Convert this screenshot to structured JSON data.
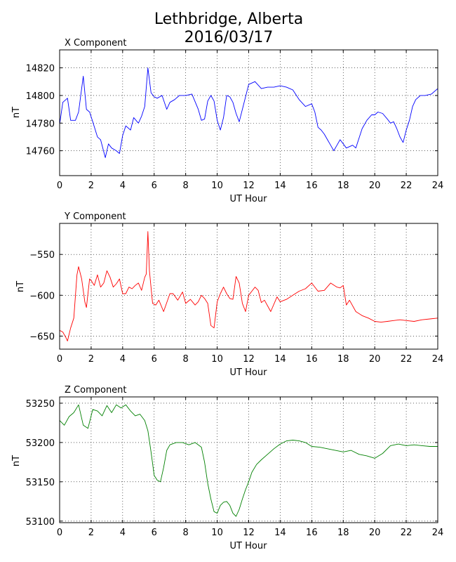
{
  "title_line1": "Lethbridge, Alberta",
  "title_line2": "2016/03/17",
  "chart_data": [
    {
      "type": "line",
      "panel_title": "X Component",
      "xlabel": "UT Hour",
      "ylabel": "nT",
      "xlim": [
        0,
        24
      ],
      "ylim": [
        14742,
        14833
      ],
      "xticks": [
        0,
        2,
        4,
        6,
        8,
        10,
        12,
        14,
        16,
        18,
        20,
        22,
        24
      ],
      "yticks": [
        14760,
        14780,
        14800,
        14820
      ],
      "grid": true,
      "series": [
        {
          "color": "#0000ff",
          "x": [
            0,
            0.2,
            0.5,
            0.7,
            1.0,
            1.2,
            1.5,
            1.7,
            1.9,
            2.1,
            2.4,
            2.6,
            2.9,
            3.1,
            3.3,
            3.6,
            3.8,
            4.0,
            4.2,
            4.5,
            4.7,
            5.0,
            5.2,
            5.4,
            5.6,
            5.8,
            6.0,
            6.2,
            6.5,
            6.8,
            7.0,
            7.3,
            7.6,
            8.0,
            8.4,
            8.8,
            9.0,
            9.2,
            9.4,
            9.6,
            9.8,
            10.0,
            10.2,
            10.4,
            10.6,
            10.8,
            11.0,
            11.2,
            11.4,
            11.6,
            12.0,
            12.4,
            12.8,
            13.2,
            13.6,
            14.0,
            14.4,
            14.8,
            15.2,
            15.6,
            16.0,
            16.2,
            16.4,
            16.6,
            16.8,
            17.0,
            17.2,
            17.4,
            17.6,
            17.8,
            18.0,
            18.2,
            18.4,
            18.6,
            18.8,
            19.0,
            19.2,
            19.5,
            19.8,
            20.0,
            20.2,
            20.5,
            20.8,
            21.0,
            21.2,
            21.4,
            21.6,
            21.8,
            22.0,
            22.2,
            22.4,
            22.6,
            22.9,
            23.2,
            23.6,
            24.0
          ],
          "y": [
            14779,
            14795,
            14798,
            14782,
            14782,
            14788,
            14814,
            14790,
            14788,
            14781,
            14770,
            14768,
            14755,
            14765,
            14762,
            14760,
            14758,
            14771,
            14778,
            14775,
            14784,
            14780,
            14785,
            14792,
            14820,
            14802,
            14799,
            14798,
            14800,
            14790,
            14795,
            14797,
            14800,
            14800,
            14801,
            14790,
            14782,
            14783,
            14796,
            14800,
            14796,
            14782,
            14775,
            14784,
            14800,
            14799,
            14795,
            14787,
            14781,
            14790,
            14808,
            14810,
            14805,
            14806,
            14806,
            14807,
            14806,
            14804,
            14797,
            14792,
            14794,
            14788,
            14777,
            14775,
            14772,
            14768,
            14764,
            14760,
            14764,
            14768,
            14765,
            14762,
            14763,
            14764,
            14762,
            14769,
            14776,
            14782,
            14786,
            14786,
            14788,
            14787,
            14783,
            14780,
            14781,
            14776,
            14770,
            14766,
            14775,
            14782,
            14792,
            14797,
            14800,
            14800,
            14801,
            14805
          ]
        }
      ]
    },
    {
      "type": "line",
      "panel_title": "Y Component",
      "xlabel": "UT Hour",
      "ylabel": "nT",
      "xlim": [
        0,
        24
      ],
      "ylim": [
        -666,
        -512
      ],
      "xticks": [
        0,
        2,
        4,
        6,
        8,
        10,
        12,
        14,
        16,
        18,
        20,
        22,
        24
      ],
      "yticks": [
        -550,
        -600,
        -650
      ],
      "grid": true,
      "series": [
        {
          "color": "#ff0000",
          "x": [
            0,
            0.2,
            0.4,
            0.5,
            0.7,
            0.9,
            1.1,
            1.2,
            1.4,
            1.6,
            1.7,
            1.9,
            2.0,
            2.2,
            2.4,
            2.6,
            2.8,
            3.0,
            3.2,
            3.4,
            3.6,
            3.8,
            4.0,
            4.2,
            4.4,
            4.6,
            4.8,
            5.0,
            5.2,
            5.4,
            5.5,
            5.6,
            5.7,
            5.9,
            6.1,
            6.3,
            6.6,
            7.0,
            7.2,
            7.5,
            7.8,
            8.0,
            8.3,
            8.6,
            8.8,
            9.0,
            9.2,
            9.4,
            9.6,
            9.8,
            10.0,
            10.2,
            10.4,
            10.6,
            10.8,
            11.0,
            11.2,
            11.4,
            11.6,
            11.8,
            12.0,
            12.2,
            12.4,
            12.6,
            12.8,
            13.0,
            13.4,
            13.8,
            14.0,
            14.4,
            14.8,
            15.2,
            15.6,
            16.0,
            16.4,
            16.8,
            17.2,
            17.6,
            17.8,
            18.0,
            18.2,
            18.4,
            18.8,
            19.2,
            19.6,
            20.0,
            20.4,
            20.8,
            21.2,
            21.6,
            22.0,
            22.5,
            23.0,
            23.5,
            24.0
          ],
          "y": [
            -643,
            -645,
            -652,
            -656,
            -640,
            -628,
            -575,
            -565,
            -580,
            -608,
            -615,
            -580,
            -582,
            -588,
            -575,
            -590,
            -585,
            -570,
            -578,
            -590,
            -586,
            -580,
            -598,
            -598,
            -590,
            -592,
            -588,
            -585,
            -594,
            -578,
            -574,
            -522,
            -570,
            -610,
            -612,
            -606,
            -620,
            -598,
            -598,
            -606,
            -596,
            -610,
            -605,
            -612,
            -608,
            -600,
            -604,
            -610,
            -637,
            -640,
            -608,
            -598,
            -590,
            -598,
            -604,
            -605,
            -577,
            -585,
            -610,
            -620,
            -600,
            -595,
            -590,
            -594,
            -609,
            -606,
            -620,
            -602,
            -608,
            -605,
            -600,
            -595,
            -592,
            -585,
            -595,
            -594,
            -585,
            -590,
            -591,
            -588,
            -612,
            -606,
            -620,
            -625,
            -628,
            -632,
            -633,
            -632,
            -631,
            -630,
            -631,
            -632,
            -630,
            -629,
            -628
          ]
        }
      ]
    },
    {
      "type": "line",
      "panel_title": "Z Component",
      "xlabel": "UT Hour",
      "ylabel": "nT",
      "xlim": [
        0,
        24
      ],
      "ylim": [
        53098,
        53258
      ],
      "xticks": [
        0,
        2,
        4,
        6,
        8,
        10,
        12,
        14,
        16,
        18,
        20,
        22,
        24
      ],
      "yticks": [
        53250,
        53200,
        53150,
        53100
      ],
      "grid": true,
      "series": [
        {
          "color": "#008000",
          "x": [
            0,
            0.3,
            0.6,
            0.9,
            1.2,
            1.5,
            1.8,
            2.1,
            2.4,
            2.7,
            3.0,
            3.3,
            3.6,
            3.9,
            4.2,
            4.5,
            4.8,
            5.1,
            5.4,
            5.6,
            5.8,
            6.0,
            6.2,
            6.4,
            6.6,
            6.8,
            7.0,
            7.4,
            7.8,
            8.2,
            8.6,
            9.0,
            9.2,
            9.4,
            9.6,
            9.8,
            10.0,
            10.2,
            10.4,
            10.6,
            10.8,
            11.0,
            11.2,
            11.4,
            11.6,
            11.8,
            12.0,
            12.2,
            12.5,
            12.8,
            13.2,
            13.6,
            14.0,
            14.4,
            14.8,
            15.2,
            15.6,
            16.0,
            16.5,
            17.0,
            17.5,
            18.0,
            18.5,
            19.0,
            19.5,
            20.0,
            20.5,
            21.0,
            21.5,
            22.0,
            22.5,
            23.0,
            23.5,
            24.0
          ],
          "y": [
            53228,
            53222,
            53233,
            53238,
            53248,
            53222,
            53218,
            53242,
            53240,
            53234,
            53247,
            53238,
            53248,
            53244,
            53248,
            53240,
            53234,
            53236,
            53228,
            53215,
            53188,
            53158,
            53152,
            53150,
            53168,
            53190,
            53197,
            53200,
            53200,
            53197,
            53200,
            53194,
            53175,
            53148,
            53128,
            53112,
            53110,
            53120,
            53124,
            53125,
            53120,
            53110,
            53106,
            53115,
            53128,
            53140,
            53150,
            53162,
            53172,
            53178,
            53185,
            53192,
            53198,
            53202,
            53203,
            53202,
            53200,
            53195,
            53194,
            53192,
            53190,
            53188,
            53190,
            53185,
            53183,
            53180,
            53186,
            53196,
            53198,
            53196,
            53197,
            53196,
            53195,
            53195
          ]
        }
      ]
    }
  ]
}
